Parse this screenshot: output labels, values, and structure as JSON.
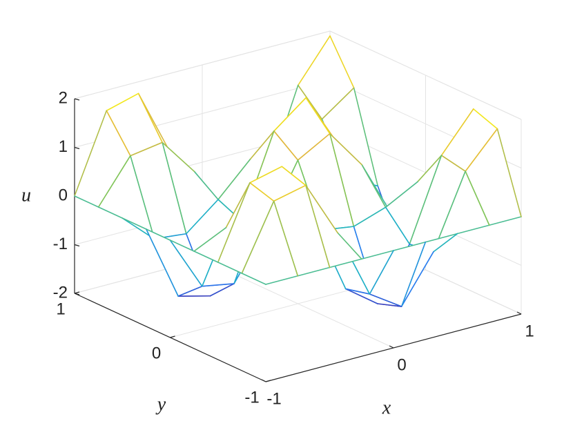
{
  "chart_data": {
    "type": "mesh",
    "x": [
      -1,
      -0.75,
      -0.5,
      -0.25,
      0,
      0.25,
      0.5,
      0.75,
      1
    ],
    "y": [
      -1,
      -0.75,
      -0.5,
      -0.25,
      0,
      0.25,
      0.5,
      0.75,
      1
    ],
    "z": [
      [
        0,
        0,
        0,
        0,
        0,
        0,
        0,
        0,
        0
      ],
      [
        0,
        1.31,
        1.46,
        0.31,
        -1.12,
        -1.55,
        -0.6,
        0.88,
        1.58
      ],
      [
        0,
        1.46,
        1.62,
        0.34,
        -1.24,
        -1.72,
        -0.67,
        0.98,
        1.76
      ],
      [
        0,
        0.31,
        0.34,
        0.07,
        -0.26,
        -0.36,
        -0.14,
        0.21,
        0.37
      ],
      [
        0,
        -1.12,
        -1.24,
        -0.26,
        0.95,
        1.32,
        0.51,
        -0.75,
        -1.34
      ],
      [
        0,
        -1.55,
        -1.72,
        -0.36,
        1.32,
        1.83,
        0.71,
        -1.04,
        -1.86
      ],
      [
        0,
        -0.6,
        -0.67,
        -0.14,
        0.51,
        0.71,
        0.28,
        -0.4,
        -0.73
      ],
      [
        0,
        0.88,
        0.98,
        0.21,
        -0.75,
        -1.04,
        -0.4,
        0.59,
        1.06
      ],
      [
        0,
        1.58,
        1.76,
        0.37,
        -1.34,
        -1.86,
        -0.73,
        1.06,
        1.9
      ]
    ],
    "xlim": [
      -1,
      1
    ],
    "ylim": [
      -1,
      1
    ],
    "zlim": [
      -2,
      2
    ],
    "xticks": [
      -1,
      0,
      1
    ],
    "yticks": [
      -1,
      0,
      1
    ],
    "zticks": [
      -2,
      -1,
      0,
      1,
      2
    ],
    "xlabel": "x",
    "ylabel": "y",
    "zlabel": "u",
    "grid": true,
    "colormap": [
      "#3e26a8",
      "#2a7cf0",
      "#1fb4c4",
      "#7cc65c",
      "#e3b83c",
      "#f9fb0e"
    ]
  }
}
